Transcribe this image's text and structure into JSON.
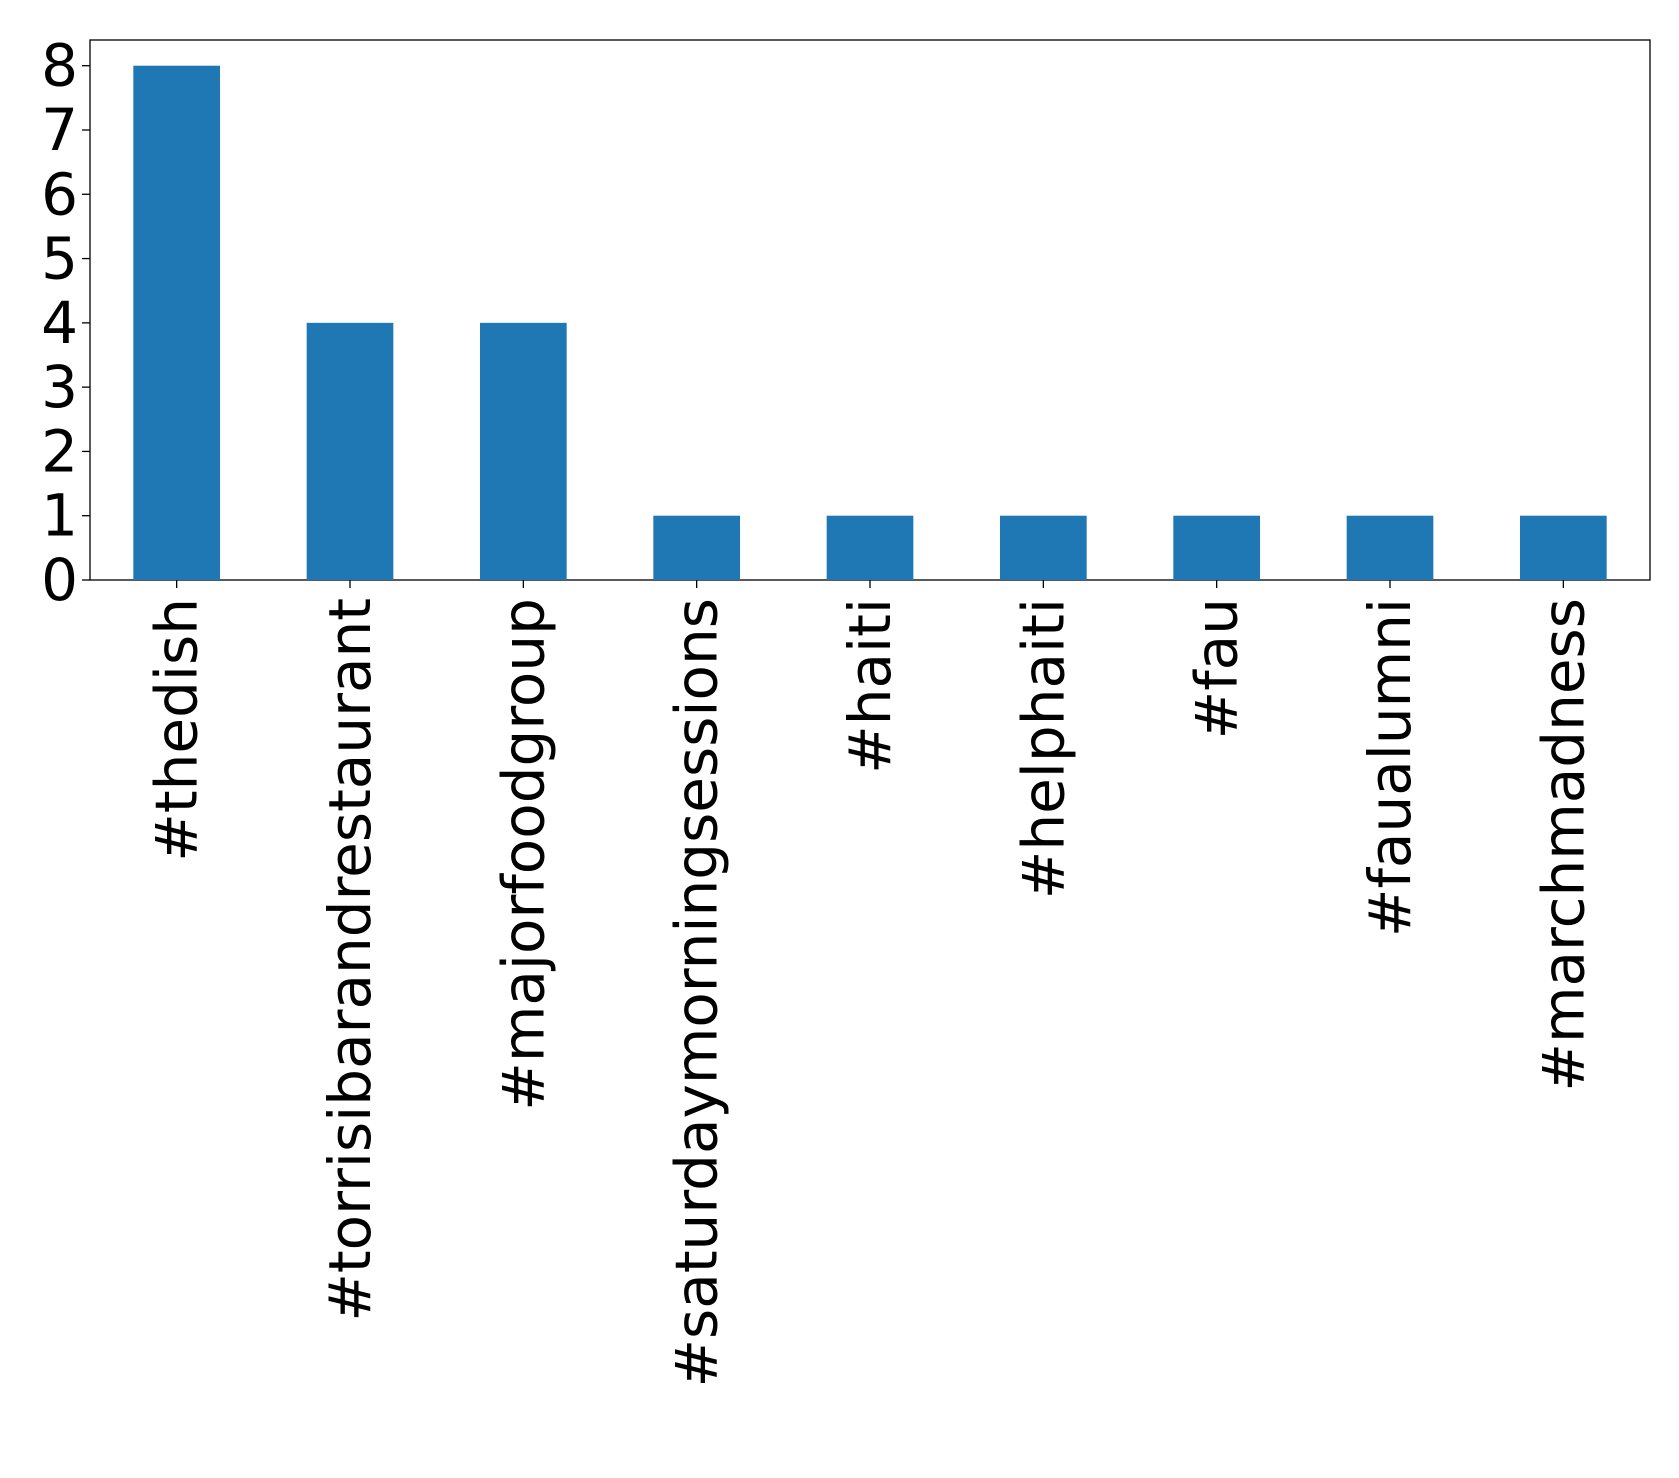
{
  "chart_data": {
    "type": "bar",
    "title": "",
    "xlabel": "",
    "ylabel": "",
    "categories": [
      "#thedish",
      "#torrisibarandrestaurant",
      "#majorfoodgroup",
      "#saturdaymorningsessions",
      "#haiti",
      "#helphaiti",
      "#fau",
      "#faualumni",
      "#marchmadness"
    ],
    "values": [
      8,
      4,
      4,
      1,
      1,
      1,
      1,
      1,
      1
    ],
    "ylim": [
      0,
      8.4
    ],
    "yticks": [
      0,
      1,
      2,
      3,
      4,
      5,
      6,
      7,
      8
    ],
    "bar_color": "#1f77b4",
    "grid": false,
    "legend": "none"
  }
}
